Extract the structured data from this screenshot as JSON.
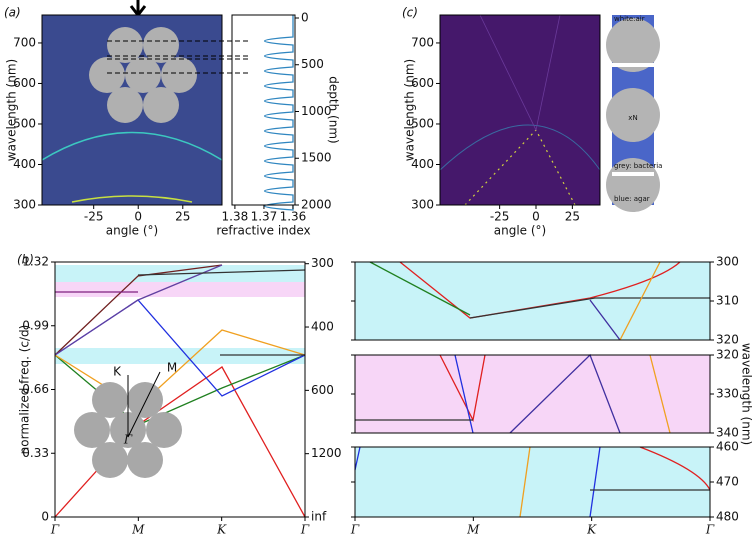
{
  "chart_data": [
    {
      "type": "heatmap",
      "panel_label": "(a)",
      "xlabel": "angle (°)",
      "ylabel": "wavelength (nm)",
      "xlim": [
        -54,
        47
      ],
      "xticks": [
        -25,
        0,
        25
      ],
      "ylim": [
        300,
        769
      ],
      "yticks": [
        300,
        400,
        500,
        600,
        700
      ],
      "color": "#3a4a8f"
    },
    {
      "type": "profile",
      "xlabel": "refractive index",
      "y2label": "depth (nm)",
      "xlim": [
        1.381,
        1.3593
      ],
      "xticks": [
        1.38,
        1.37,
        1.36
      ],
      "y2lim": [
        2000,
        -32
      ],
      "y2ticks": [
        0,
        500,
        1000,
        1500,
        2000
      ],
      "color": "#2f86c0"
    },
    {
      "type": "heatmap",
      "panel_label": "(c)",
      "xlabel": "angle (°)",
      "ylabel": "wavelength (nm)",
      "xlim": [
        -66,
        44
      ],
      "xticks": [
        -25,
        0,
        25
      ],
      "ylim": [
        300,
        769
      ],
      "yticks": [
        300,
        400,
        500,
        600,
        700
      ],
      "color": "#45186b",
      "annotations": [
        "white:air",
        "xN",
        "grey: bacteria",
        "blue: agar"
      ]
    },
    {
      "type": "bands",
      "panel_label": "(b)",
      "ylabel": "normalized freq. (c/d)",
      "categories": [
        "Γ",
        "M",
        "K",
        "Γ"
      ],
      "ylim": [
        0,
        1.32
      ],
      "yticks": [
        0,
        0.33,
        0.66,
        0.99,
        1.32
      ],
      "y2scale": "reciprocal",
      "y2lim": [
        null,
        298
      ],
      "y2ticks": [
        300,
        400,
        600,
        1200,
        {
          "value": null,
          "label": "inf"
        }
      ],
      "annotations": [
        "K",
        "M",
        "Γ"
      ],
      "color": "#c8f3f8"
    },
    {
      "type": "bands-zoom",
      "ylim": [
        320,
        300
      ],
      "yticks": [
        300,
        310,
        320
      ],
      "color": "#c8f3f8"
    },
    {
      "type": "bands-zoom",
      "y2label": "wavelength (nm)",
      "ylim": [
        340,
        320
      ],
      "yticks": [
        320,
        330,
        340
      ],
      "color": "#f7d6f7"
    },
    {
      "type": "bands-zoom",
      "ylim": [
        480,
        460
      ],
      "yticks": [
        460,
        470,
        480
      ],
      "categories": [
        "Γ",
        "M",
        "K",
        "Γ"
      ],
      "color": "#c8f3f8"
    }
  ]
}
